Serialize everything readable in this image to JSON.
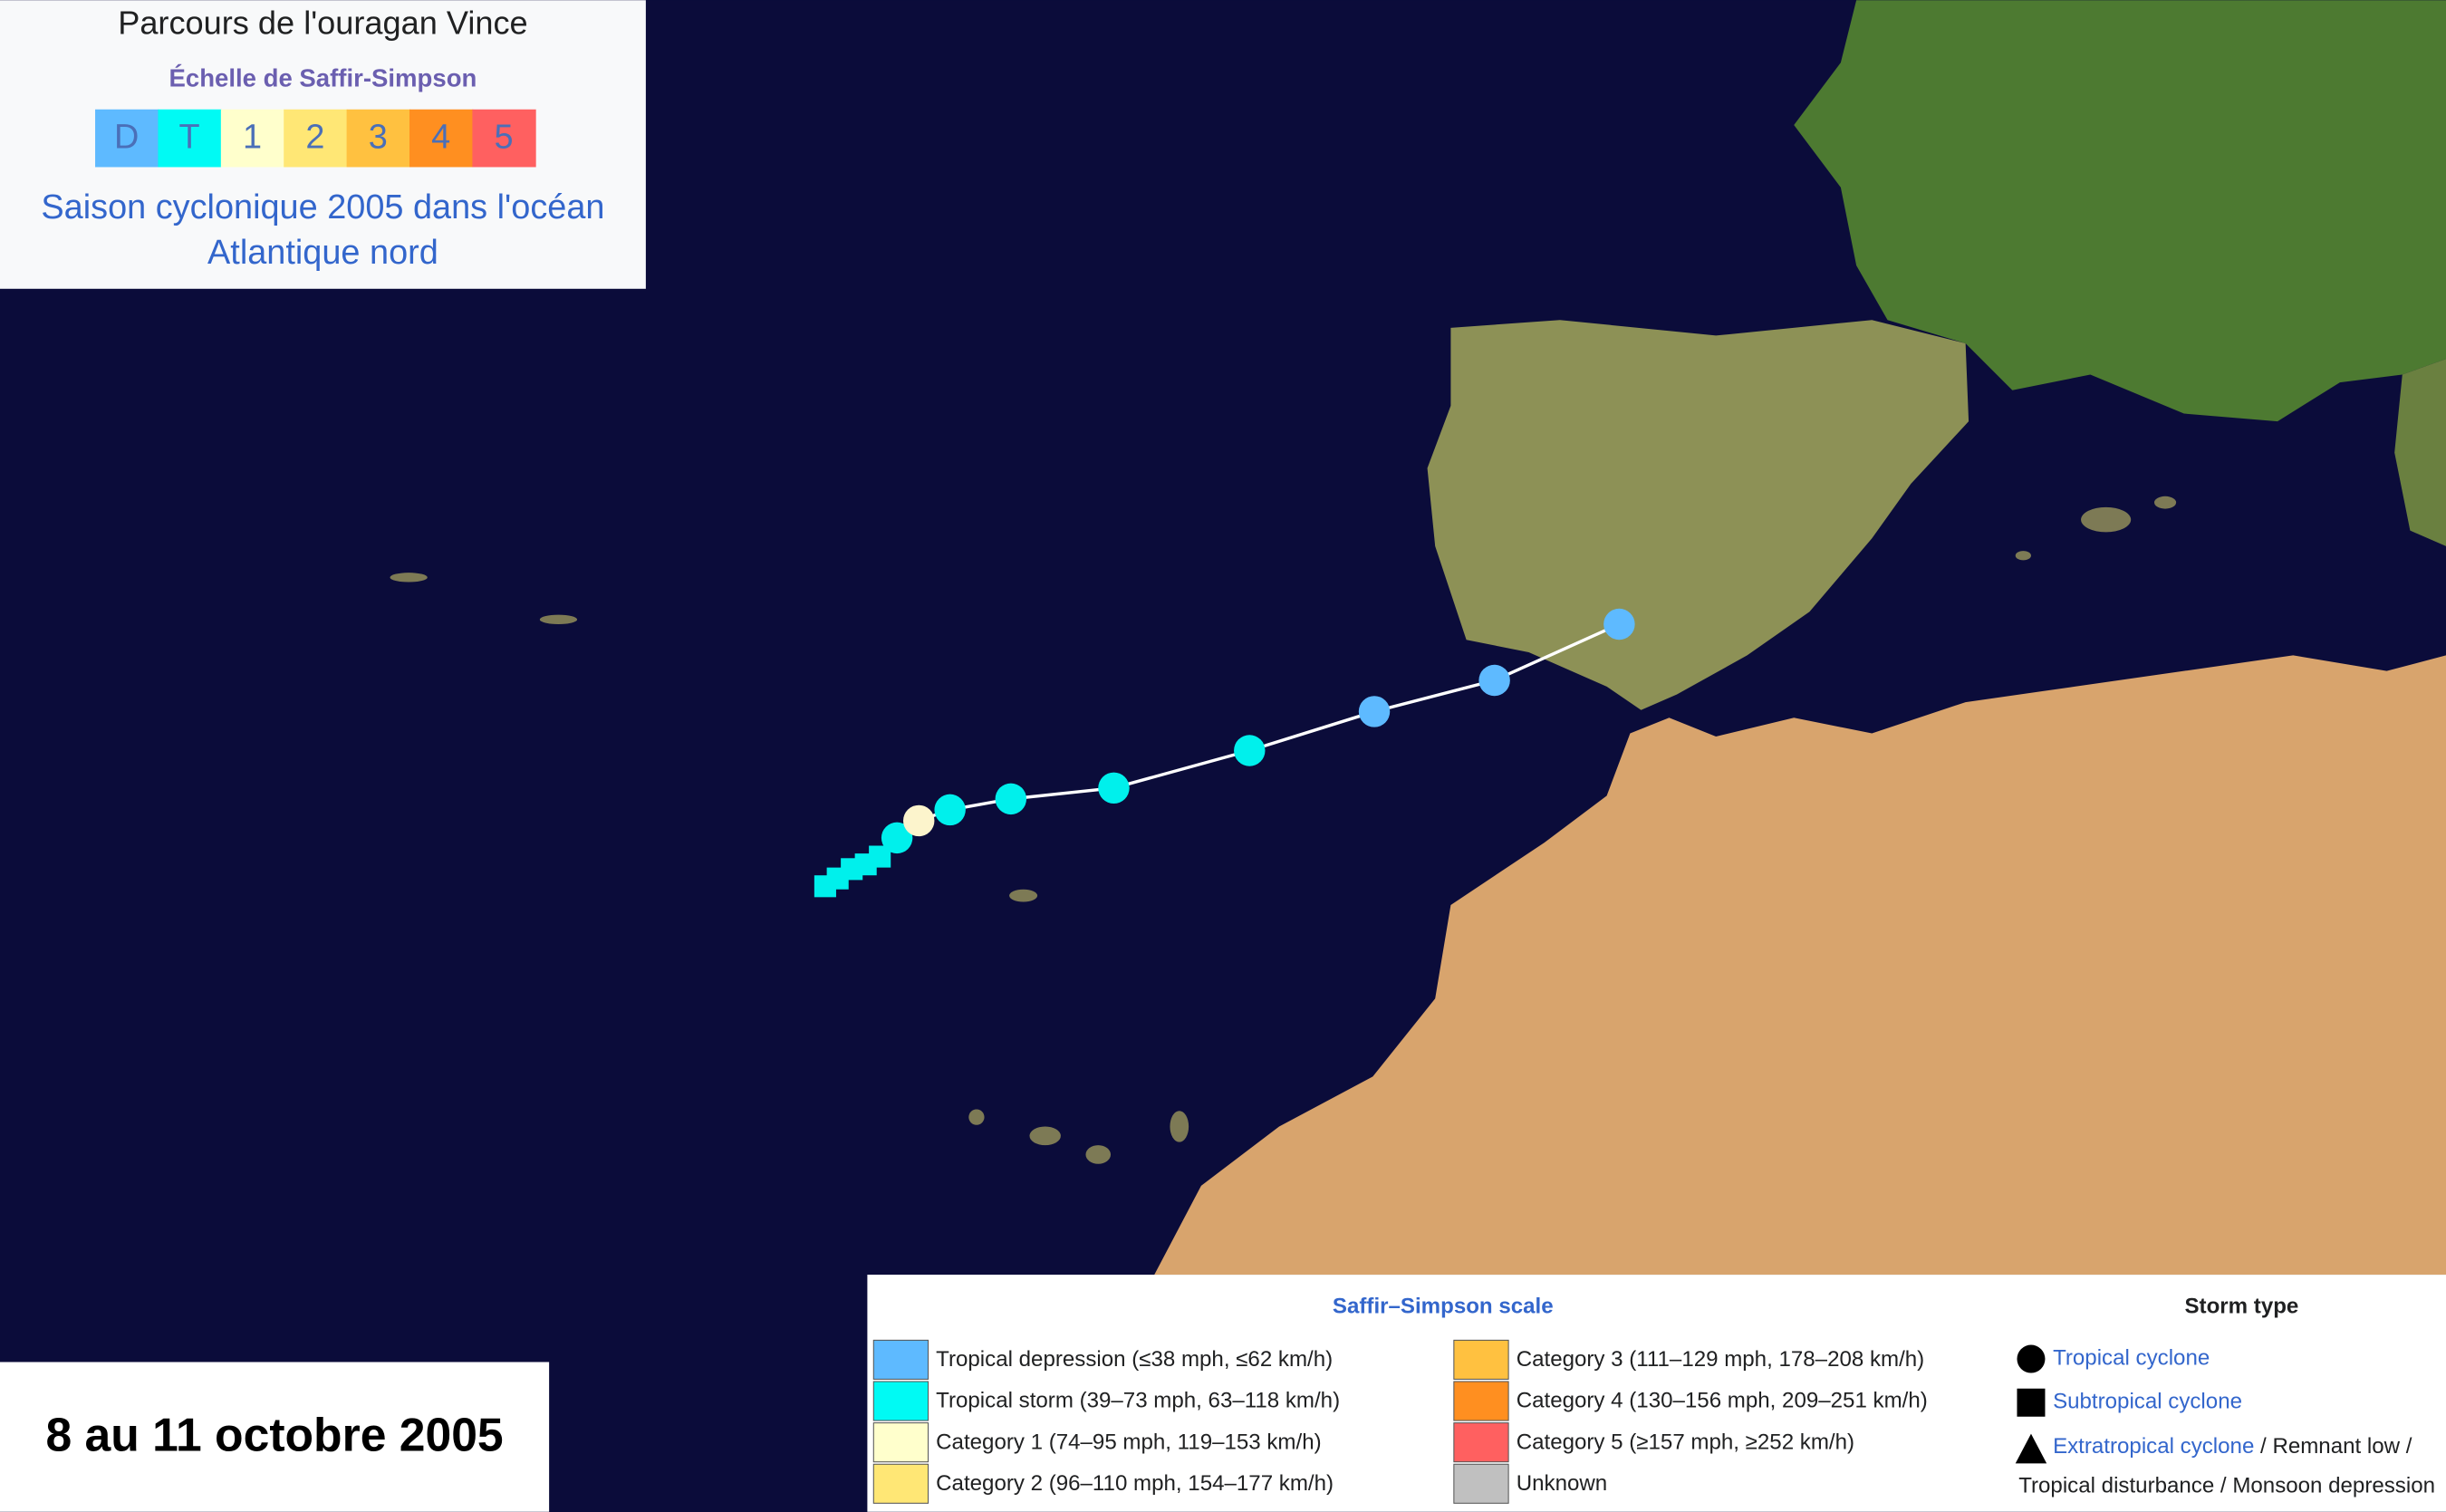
{
  "header": {
    "title": "Parcours de l'ouragan Vince",
    "scale_label": "Échelle de Saffir-Simpson",
    "scale_keys": [
      "D",
      "T",
      "1",
      "2",
      "3",
      "4",
      "5"
    ],
    "season_link": [
      "Saison cyclonique 2005 dans l'océan",
      "Atlantique nord"
    ]
  },
  "date_box": "8 au 11 octobre 2005",
  "legend": {
    "scale_title": "Saffir–Simpson scale",
    "items": [
      "Tropical depression (≤38 mph, ≤62 km/h)",
      "Tropical storm (39–73 mph, 63–118 km/h)",
      "Category 1 (74–95 mph, 119–153 km/h)",
      "Category 2 (96–110 mph, 154–177 km/h)",
      "Category 3 (111–129 mph, 178–208 km/h)",
      "Category 4 (130–156 mph, 209–251 km/h)",
      "Category 5 (≥157 mph, ≥252 km/h)",
      "Unknown"
    ],
    "storm_type_title": "Storm type",
    "types": [
      "Tropical cyclone",
      "Subtropical cyclone",
      "Extratropical cyclone",
      " / Remnant low /",
      "Tropical disturbance / Monsoon depression"
    ]
  }
}
